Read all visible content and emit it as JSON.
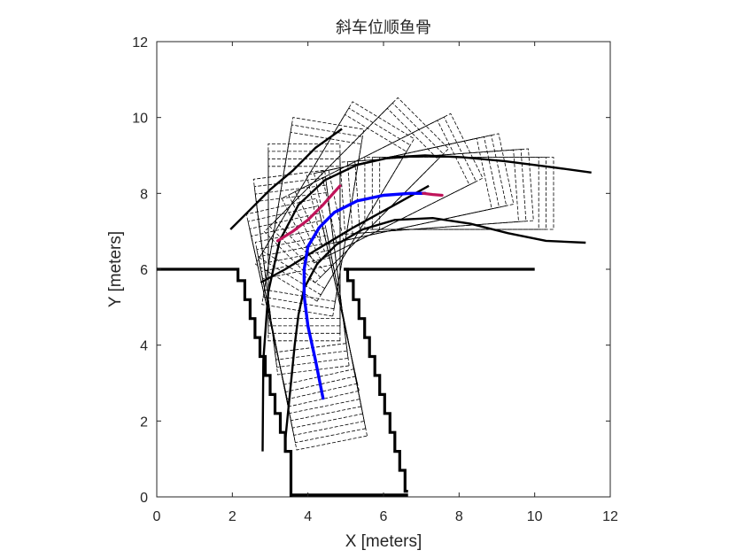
{
  "chart_data": {
    "type": "line",
    "title": "斜车位顺鱼骨",
    "xlabel": "X [meters]",
    "ylabel": "Y [meters]",
    "xlim": [
      0,
      12
    ],
    "ylim": [
      0,
      12
    ],
    "xticks": [
      "0",
      "2",
      "4",
      "6",
      "8",
      "10",
      "12"
    ],
    "yticks": [
      "0",
      "2",
      "4",
      "6",
      "8",
      "10",
      "12"
    ],
    "grid": false,
    "colors": {
      "boundary": "#000000",
      "vehicle_outline": "#000000",
      "path_forward": "#0000ff",
      "path_reverse": "#c0145a"
    },
    "series": [
      {
        "role": "parking_boundary",
        "segments": [
          {
            "x": [
              0,
              2.05
            ],
            "y": [
              6.0,
              6.0
            ]
          },
          {
            "x": [
              4.95,
              10.0
            ],
            "y": [
              6.0,
              6.0
            ]
          },
          {
            "x": [
              2.05,
              2.15,
              2.15,
              2.33,
              2.33,
              2.47,
              2.47,
              2.6,
              2.6,
              2.73,
              2.73,
              2.87,
              2.87,
              3.0,
              3.0,
              3.13,
              3.13,
              3.27,
              3.27,
              3.4,
              3.4,
              3.55,
              3.55
            ],
            "y": [
              6.0,
              6.0,
              5.7,
              5.7,
              5.2,
              5.2,
              4.7,
              4.7,
              4.2,
              4.2,
              3.7,
              3.7,
              3.2,
              3.2,
              2.7,
              2.7,
              2.2,
              2.2,
              1.7,
              1.7,
              1.2,
              1.2,
              0.0
            ]
          },
          {
            "x": [
              4.95,
              5.05,
              5.05,
              5.2,
              5.2,
              5.35,
              5.35,
              5.5,
              5.5,
              5.63,
              5.63,
              5.77,
              5.77,
              5.9,
              5.9,
              6.03,
              6.03,
              6.17,
              6.17,
              6.3,
              6.3,
              6.43,
              6.43,
              6.57,
              6.57,
              6.65
            ],
            "y": [
              6.0,
              6.0,
              5.7,
              5.7,
              5.2,
              5.2,
              4.7,
              4.7,
              4.2,
              4.2,
              3.7,
              3.7,
              3.2,
              3.2,
              2.7,
              2.7,
              2.2,
              2.2,
              1.7,
              1.7,
              1.2,
              1.2,
              0.7,
              0.7,
              0.15,
              0.15
            ]
          },
          {
            "x": [
              3.55,
              6.65
            ],
            "y": [
              0.05,
              0.05
            ]
          }
        ]
      },
      {
        "role": "forward_path",
        "x": [
          4.4,
          4.2,
          4.0,
          3.9,
          3.9,
          4.0,
          4.3,
          4.7,
          5.3,
          6.0,
          6.7,
          7.1
        ],
        "y": [
          2.6,
          3.6,
          4.5,
          5.3,
          6.0,
          6.6,
          7.1,
          7.5,
          7.8,
          7.95,
          8.0,
          8.0
        ]
      },
      {
        "role": "reverse_path",
        "x": [
          3.2,
          3.6,
          4.0,
          4.4,
          4.85
        ],
        "y": [
          6.75,
          7.0,
          7.3,
          7.7,
          8.2
        ]
      },
      {
        "role": "reverse_path",
        "x": [
          7.05,
          7.3,
          7.55
        ],
        "y": [
          8.0,
          7.97,
          7.95
        ]
      },
      {
        "role": "swept_envelope",
        "segments": [
          {
            "x": [
              2.8,
              2.82,
              2.95,
              3.25,
              3.75,
              4.45,
              5.3,
              6.2,
              7.1,
              8.1,
              9.2,
              10.4,
              11.5
            ],
            "y": [
              1.2,
              3.6,
              5.4,
              6.75,
              7.7,
              8.35,
              8.75,
              8.95,
              9.0,
              8.95,
              8.85,
              8.7,
              8.55
            ]
          },
          {
            "x": [
              3.4,
              3.55,
              3.65,
              3.75,
              3.9,
              4.25,
              4.75,
              5.45,
              6.3,
              7.3,
              8.3,
              9.3,
              10.3,
              11.35
            ],
            "y": [
              1.5,
              3.0,
              4.0,
              4.8,
              5.5,
              6.15,
              6.65,
              7.05,
              7.3,
              7.35,
              7.2,
              6.95,
              6.75,
              6.7
            ]
          },
          {
            "x": [
              1.95,
              2.4,
              3.0,
              3.6,
              4.2,
              4.9
            ],
            "y": [
              7.05,
              7.5,
              8.1,
              8.6,
              9.2,
              9.7
            ]
          },
          {
            "x": [
              2.75,
              3.4,
              4.2,
              5.2,
              6.3,
              7.2
            ],
            "y": [
              5.65,
              6.0,
              6.5,
              7.1,
              7.7,
              8.2
            ]
          }
        ]
      },
      {
        "role": "vehicle_footprints",
        "count": 40,
        "vehicle_length": 4.6,
        "vehicle_width": 1.9
      }
    ]
  }
}
